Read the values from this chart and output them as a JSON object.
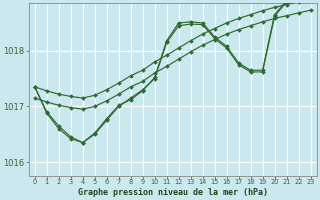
{
  "bg_color": "#cce8ef",
  "grid_color": "#ffffff",
  "line_color": "#2d6a2d",
  "xlabel": "Graphe pression niveau de la mer (hPa)",
  "xlabel_color": "#1a4a1a",
  "ylabel_ticks": [
    1016,
    1017,
    1018
  ],
  "xlim": [
    -0.5,
    23.5
  ],
  "ylim": [
    1015.75,
    1018.85
  ],
  "series": [
    {
      "x": [
        0,
        1,
        2,
        3,
        4,
        5,
        6,
        7,
        8,
        9,
        10,
        11,
        12,
        13,
        14,
        15,
        16,
        17,
        18,
        19,
        20,
        21,
        22,
        23
      ],
      "y": [
        1017.35,
        1017.28,
        1017.22,
        1017.18,
        1017.15,
        1017.2,
        1017.3,
        1017.42,
        1017.55,
        1017.65,
        1017.8,
        1017.92,
        1018.05,
        1018.18,
        1018.3,
        1018.4,
        1018.5,
        1018.58,
        1018.65,
        1018.72,
        1018.78,
        1018.83,
        1018.88,
        1018.93
      ]
    },
    {
      "x": [
        0,
        1,
        2,
        3,
        4,
        5,
        6,
        7,
        8,
        9,
        10,
        11,
        12,
        13,
        14,
        15,
        16,
        17,
        18,
        19,
        20,
        21,
        22,
        23
      ],
      "y": [
        1017.15,
        1017.08,
        1017.02,
        1016.98,
        1016.95,
        1017.0,
        1017.1,
        1017.22,
        1017.35,
        1017.45,
        1017.6,
        1017.72,
        1017.85,
        1017.98,
        1018.1,
        1018.2,
        1018.3,
        1018.38,
        1018.45,
        1018.52,
        1018.58,
        1018.63,
        1018.68,
        1018.73
      ]
    },
    {
      "x": [
        0,
        1,
        2,
        3,
        4,
        5,
        6,
        7,
        8,
        9,
        10,
        11,
        12,
        13,
        14,
        15,
        16,
        17,
        18,
        19,
        20,
        21,
        22,
        23
      ],
      "y": [
        1017.35,
        1016.9,
        1016.65,
        1016.45,
        1016.35,
        1016.5,
        1016.75,
        1017.0,
        1017.15,
        1017.3,
        1017.5,
        1018.15,
        1018.45,
        1018.48,
        1018.47,
        1018.22,
        1018.05,
        1017.75,
        1017.62,
        1017.62,
        1018.62,
        1018.88,
        1019.03,
        1019.08
      ]
    },
    {
      "x": [
        0,
        1,
        2,
        3,
        4,
        5,
        6,
        7,
        8,
        9,
        10,
        11,
        12,
        13,
        14,
        15,
        16,
        17,
        18,
        19,
        20,
        21,
        22,
        23
      ],
      "y": [
        1017.35,
        1016.88,
        1016.6,
        1016.42,
        1016.35,
        1016.52,
        1016.78,
        1017.02,
        1017.12,
        1017.28,
        1017.52,
        1018.18,
        1018.5,
        1018.52,
        1018.5,
        1018.25,
        1018.08,
        1017.78,
        1017.65,
        1017.65,
        1018.65,
        1018.9,
        1019.05,
        1019.1
      ]
    }
  ]
}
